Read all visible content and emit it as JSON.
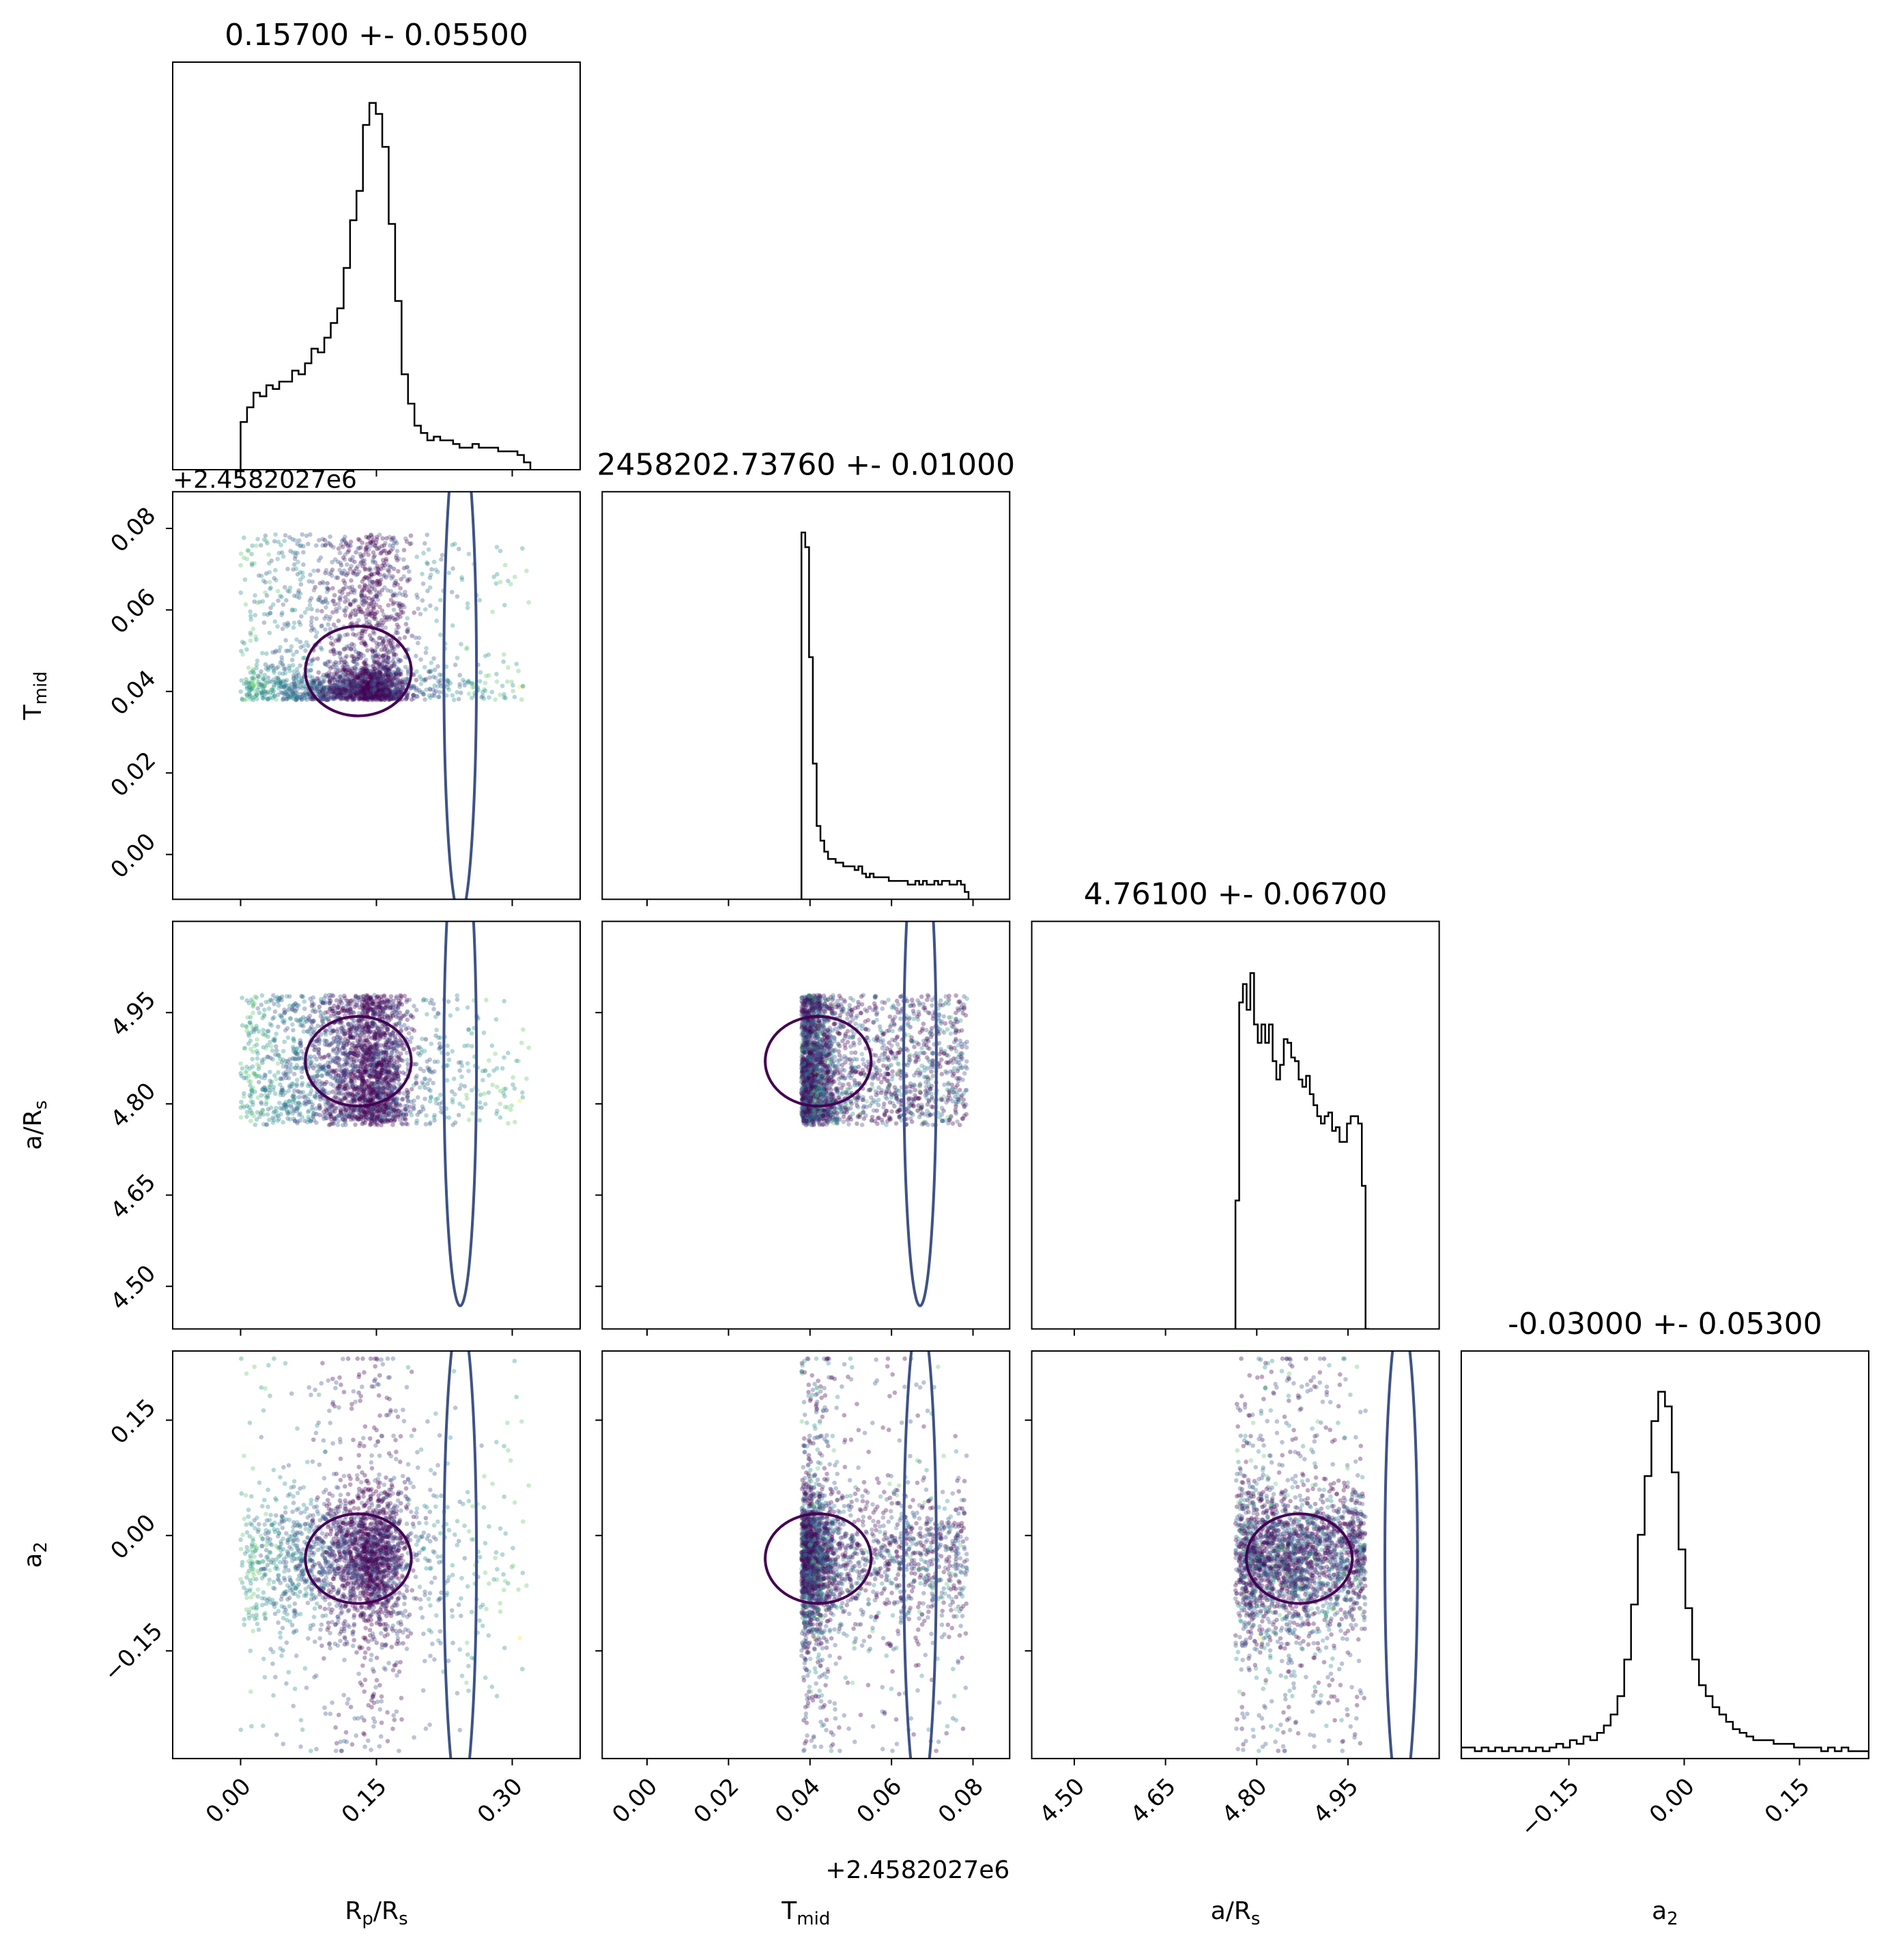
{
  "chart_data": {
    "type": "scatter",
    "subtype": "corner-plot",
    "parameters": [
      {
        "key": "rp",
        "label": "R",
        "label_sub": "p",
        "label_suffix": "/R",
        "label_suffix_sub": "s",
        "title": "0.15700 +- 0.05500",
        "range": [
          -0.075,
          0.375
        ],
        "ticks": [
          0.0,
          0.15,
          0.3
        ],
        "tick_labels": [
          "0.00",
          "0.15",
          "0.30"
        ]
      },
      {
        "key": "tmid",
        "label": "T",
        "label_sub": "mid",
        "label_suffix": "",
        "label_suffix_sub": "",
        "title": "2458202.73760 +- 0.01000",
        "range": [
          -0.011,
          0.089
        ],
        "ticks": [
          0.0,
          0.02,
          0.04,
          0.06,
          0.08
        ],
        "tick_labels": [
          "0.00",
          "0.02",
          "0.04",
          "0.06",
          "0.08"
        ],
        "offset_text": "+2.4582027e6"
      },
      {
        "key": "ars",
        "label": "a/R",
        "label_sub": "s",
        "label_suffix": "",
        "label_suffix_sub": "",
        "title": "4.76100 +- 0.06700",
        "range": [
          4.43,
          5.1
        ],
        "ticks": [
          4.5,
          4.65,
          4.8,
          4.95
        ],
        "tick_labels": [
          "4.50",
          "4.65",
          "4.80",
          "4.95"
        ]
      },
      {
        "key": "a2",
        "label": "a",
        "label_sub": "2",
        "label_suffix": "",
        "label_suffix_sub": "",
        "title": "-0.03000 +- 0.05300",
        "range": [
          -0.29,
          0.24
        ],
        "ticks": [
          -0.15,
          0.0,
          0.15
        ],
        "tick_labels": [
          "−0.15",
          "0.00",
          "0.15"
        ]
      }
    ],
    "histograms": {
      "rp": [
        0,
        0,
        0,
        0,
        0,
        0,
        0,
        0,
        0,
        0,
        0,
        0,
        0,
        0,
        0,
        0,
        0,
        0,
        0,
        0,
        0,
        0,
        0,
        0,
        0,
        0,
        0,
        0,
        0,
        0,
        0,
        0,
        0,
        0,
        0,
        0,
        0,
        0,
        0,
        0,
        0,
        0,
        0,
        0,
        0,
        0,
        0,
        0,
        0,
        0,
        0,
        0,
        0,
        0,
        0,
        0,
        0,
        0,
        0,
        0,
        0,
        0,
        0,
        0,
        0,
        0,
        0,
        0,
        0,
        0,
        0,
        0,
        0,
        0,
        0,
        0,
        0,
        0,
        0,
        0,
        0,
        0,
        0,
        0,
        0,
        0,
        0,
        0,
        0,
        0,
        0,
        0,
        0,
        0,
        0,
        0,
        0,
        0,
        0,
        0
      ],
      "tmid": [
        0,
        0,
        0,
        0,
        0,
        0,
        0,
        0,
        0,
        0,
        0,
        0,
        0,
        0,
        0,
        0,
        0,
        0,
        0,
        0,
        0,
        0,
        0,
        0,
        0,
        0,
        0,
        0,
        0,
        0,
        0,
        0,
        0,
        0,
        0,
        0,
        0,
        0,
        0,
        0,
        0,
        0,
        0,
        0,
        0,
        0,
        0,
        0,
        0,
        0,
        0,
        0,
        0,
        0,
        0,
        0,
        0,
        0,
        0,
        0,
        0,
        0,
        0,
        0,
        0,
        0,
        0,
        0,
        0,
        0,
        0,
        0,
        0,
        0,
        0,
        0,
        0,
        0,
        0,
        0,
        0,
        0,
        0,
        0,
        0,
        0,
        0,
        0,
        0,
        0,
        0,
        0,
        0,
        0,
        0,
        0,
        0,
        0,
        0,
        0
      ],
      "ars": [
        0,
        0,
        0,
        0,
        0,
        0,
        0,
        0,
        0,
        0,
        0,
        0,
        0,
        0,
        0,
        0,
        0,
        0,
        0,
        0,
        0,
        0,
        0,
        0,
        0,
        0,
        0,
        0,
        0,
        0,
        0,
        0,
        0,
        0,
        0,
        0,
        0,
        0,
        0,
        0,
        0,
        0,
        0,
        0,
        0,
        0,
        0,
        0,
        0,
        0,
        0,
        0,
        0,
        0,
        0,
        0,
        0,
        0,
        0,
        0,
        0,
        0,
        0,
        0,
        0,
        0,
        0,
        0,
        0,
        0,
        0,
        0,
        0,
        0,
        0,
        0,
        0,
        0,
        0,
        0,
        0,
        0,
        0,
        0,
        0,
        0,
        0,
        0,
        0,
        0,
        0,
        0,
        0,
        0,
        0,
        0,
        0,
        0,
        0,
        0
      ],
      "a2": [
        0,
        0,
        0,
        0,
        0,
        0,
        0,
        0,
        0,
        0,
        0,
        0,
        0,
        0,
        0,
        0,
        0,
        0,
        0,
        0,
        0,
        0,
        0,
        0,
        0,
        0,
        0,
        0,
        0,
        0,
        0,
        0,
        0,
        0,
        0,
        0,
        0,
        0,
        0,
        0,
        0,
        0,
        0,
        0,
        0,
        0,
        0,
        0,
        0,
        0,
        0,
        0,
        0,
        0,
        0,
        0,
        0,
        0,
        0,
        0,
        0,
        0,
        0,
        0,
        0,
        0,
        0,
        0,
        0,
        0,
        0,
        0,
        0,
        0,
        0,
        0,
        0,
        0,
        0,
        0,
        0,
        0,
        0,
        0,
        0,
        0,
        0,
        0,
        0,
        0,
        0,
        0,
        0,
        0,
        0,
        0,
        0,
        0,
        0,
        0
      ]
    },
    "histogram_shapes": {
      "rp": {
        "bins": 45,
        "lo": 0.0,
        "hi": 0.32,
        "heights": [
          0.13,
          0.17,
          0.21,
          0.2,
          0.23,
          0.22,
          0.24,
          0.24,
          0.27,
          0.26,
          0.29,
          0.33,
          0.32,
          0.36,
          0.4,
          0.44,
          0.55,
          0.68,
          0.76,
          0.94,
          1.0,
          0.97,
          0.88,
          0.67,
          0.46,
          0.26,
          0.18,
          0.12,
          0.1,
          0.08,
          0.09,
          0.08,
          0.08,
          0.07,
          0.06,
          0.06,
          0.07,
          0.06,
          0.06,
          0.06,
          0.05,
          0.05,
          0.05,
          0.04,
          0.02
        ]
      },
      "tmid": {
        "bins": 44,
        "lo": 0.0379,
        "hi": 0.0789,
        "heights": [
          1.0,
          0.96,
          0.66,
          0.37,
          0.2,
          0.16,
          0.13,
          0.11,
          0.11,
          0.1,
          0.1,
          0.09,
          0.09,
          0.09,
          0.08,
          0.09,
          0.07,
          0.06,
          0.07,
          0.06,
          0.06,
          0.06,
          0.06,
          0.05,
          0.05,
          0.05,
          0.05,
          0.05,
          0.04,
          0.04,
          0.05,
          0.04,
          0.05,
          0.04,
          0.04,
          0.05,
          0.04,
          0.05,
          0.05,
          0.04,
          0.04,
          0.05,
          0.04,
          0.02
        ]
      },
      "ars": {
        "bins": 36,
        "lo": 4.765,
        "hi": 4.985,
        "heights": [
          0.35,
          0.89,
          0.94,
          0.87,
          0.97,
          0.83,
          0.78,
          0.83,
          0.78,
          0.83,
          0.73,
          0.68,
          0.72,
          0.79,
          0.78,
          0.74,
          0.73,
          0.68,
          0.66,
          0.69,
          0.64,
          0.61,
          0.58,
          0.56,
          0.58,
          0.59,
          0.54,
          0.55,
          0.51,
          0.51,
          0.56,
          0.58,
          0.58,
          0.56,
          0.39,
          0.0
        ]
      },
      "a2": {
        "bins": 60,
        "lo": -0.29,
        "hi": 0.24,
        "heights": [
          0.03,
          0.03,
          0.02,
          0.03,
          0.02,
          0.03,
          0.02,
          0.03,
          0.02,
          0.03,
          0.02,
          0.03,
          0.02,
          0.03,
          0.04,
          0.03,
          0.05,
          0.04,
          0.06,
          0.05,
          0.07,
          0.09,
          0.12,
          0.17,
          0.27,
          0.42,
          0.61,
          0.77,
          0.92,
          1.0,
          0.96,
          0.78,
          0.57,
          0.41,
          0.27,
          0.2,
          0.17,
          0.14,
          0.12,
          0.1,
          0.08,
          0.07,
          0.06,
          0.05,
          0.05,
          0.05,
          0.04,
          0.04,
          0.04,
          0.03,
          0.03,
          0.03,
          0.03,
          0.02,
          0.03,
          0.02,
          0.03,
          0.02,
          0.02,
          0.02
        ]
      }
    },
    "scatter_colormap": [
      "#440154",
      "#3b528b",
      "#21908c",
      "#5dc963",
      "#fde725"
    ],
    "contour_colors": [
      "#440154",
      "#3b528b"
    ],
    "grid": false,
    "legend": "none"
  }
}
